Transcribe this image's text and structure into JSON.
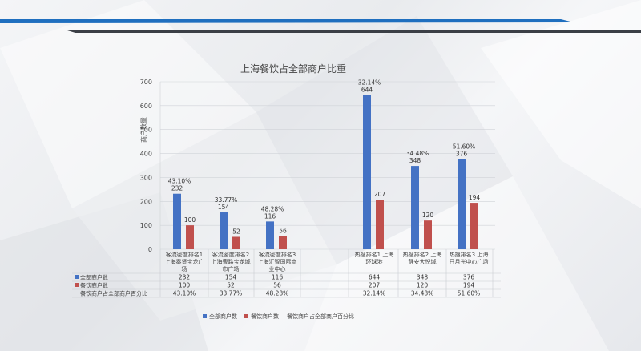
{
  "colors": {
    "series_all": "#4472c4",
    "series_food": "#c0504d",
    "header_blue": "#1f6fbf",
    "header_gray": "#3b3f46"
  },
  "chart_data": {
    "type": "bar",
    "title": "上海餐饮占全部商户比重",
    "ylabel": "商户数量",
    "ylim": [
      0,
      700
    ],
    "yticks": [
      0,
      100,
      200,
      300,
      400,
      500,
      600,
      700
    ],
    "grid": true,
    "legend_position": "bottom",
    "groups": [
      {
        "categories": [
          "客流密度排名1 上海奉贤宝龙广场",
          "客流密度排名2 上海曹路宝龙城市广场",
          "客流密度排名3 上海汇智国际商业中心"
        ]
      },
      {
        "categories": [
          "热搜排名1 上海环球港",
          "热搜排名2 上海静安大悦城",
          "热搜排名3 上海日月光中心广场"
        ]
      }
    ],
    "categories": [
      "客流密度排名1 上海奉贤宝龙广场",
      "客流密度排名2 上海曹路宝龙城市广场",
      "客流密度排名3 上海汇智国际商业中心",
      "热搜排名1 上海环球港",
      "热搜排名2 上海静安大悦城",
      "热搜排名3 上海日月光中心广场"
    ],
    "category_lines": [
      [
        "客流密度排名1",
        "上海奉贤宝龙广",
        "场"
      ],
      [
        "客流密度排名2",
        "上海曹路宝龙城",
        "市广场"
      ],
      [
        "客流密度排名3",
        "上海汇智国际商",
        "业中心"
      ],
      [
        "热搜排名1  上海",
        "环球港"
      ],
      [
        "热搜排名2  上海",
        "静安大悦城"
      ],
      [
        "热搜排名3  上海",
        "日月光中心广场"
      ]
    ],
    "series": [
      {
        "name": "全部商户数",
        "values": [
          232,
          154,
          116,
          644,
          348,
          376
        ]
      },
      {
        "name": "餐饮商户数",
        "values": [
          100,
          52,
          56,
          207,
          120,
          194
        ]
      },
      {
        "name": "餐饮商户占全部商户百分比",
        "values": [
          "43.10%",
          "33.77%",
          "48.28%",
          "32.14%",
          "34.48%",
          "51.60%"
        ]
      }
    ]
  }
}
